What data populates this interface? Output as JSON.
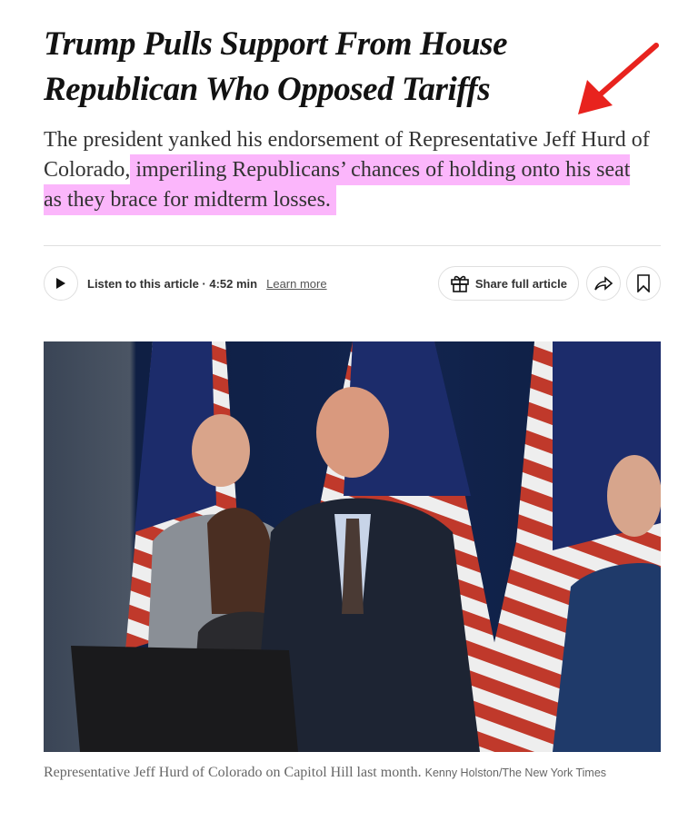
{
  "article": {
    "headline": "Trump Pulls Support From House Republican Who Opposed Tariffs",
    "summary_plain": "The president yanked his endorsement of Representative Jeff Hurd of Colorado,",
    "summary_highlighted": "imperiling Republicans’ chances of holding onto his seat as they brace for midterm losses.",
    "highlight_color": "#fbb6fb",
    "annotation_arrow_color": "#e8231e"
  },
  "toolbar": {
    "play_icon": "play-icon",
    "listen_label": "Listen to this article · 4:52 min",
    "learn_more": "Learn more",
    "share_label": "Share full article",
    "gift_icon": "gift-icon",
    "share_icon": "share-arrow-icon",
    "bookmark_icon": "bookmark-icon"
  },
  "photo": {
    "caption": "Representative Jeff Hurd of Colorado on Capitol Hill last month.",
    "credit": "Kenny Holston/The New York Times"
  }
}
